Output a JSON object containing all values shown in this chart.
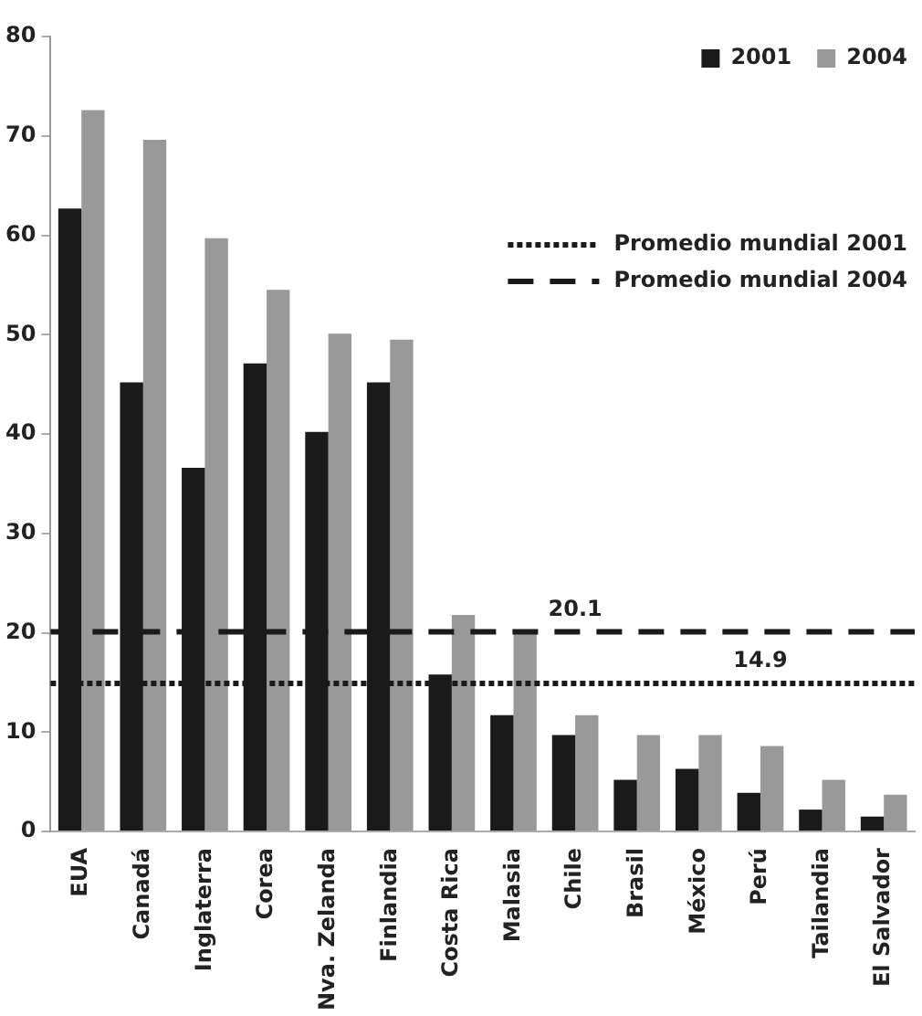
{
  "chart_data": {
    "type": "bar",
    "categories": [
      "EUA",
      "Canadá",
      "Inglaterra",
      "Corea",
      "Nva. Zelanda",
      "Finlandia",
      "Costa Rica",
      "Malasia",
      "Chile",
      "Brasil",
      "México",
      "Perú",
      "Tailandia",
      "El Salvador"
    ],
    "series": [
      {
        "name": "2001",
        "color": "#1a1a1a",
        "values": [
          62.7,
          45.2,
          36.6,
          47.1,
          40.2,
          45.2,
          15.8,
          11.7,
          9.7,
          5.2,
          6.3,
          3.9,
          2.2,
          1.5
        ]
      },
      {
        "name": "2004",
        "color": "#999999",
        "values": [
          72.6,
          69.6,
          59.7,
          54.5,
          50.1,
          49.5,
          21.8,
          20.1,
          11.7,
          9.7,
          9.7,
          8.6,
          5.2,
          3.7
        ]
      }
    ],
    "ylim": [
      0,
      80
    ],
    "yticks": [
      0,
      10,
      20,
      30,
      40,
      50,
      60,
      70,
      80
    ],
    "ref_lines": [
      {
        "axis": "y",
        "value": 14.9,
        "label": "Promedio mundial 2001",
        "color": "#1a1a1a",
        "line_style": "dotted"
      },
      {
        "axis": "y",
        "value": 20.1,
        "label": "Promedio mundial 2004",
        "color": "#1a1a1a",
        "line_style": "dashed"
      }
    ],
    "annotations": [
      {
        "text": "14.9",
        "x": "Perú",
        "y": 14.9
      },
      {
        "text": "20.1",
        "x": "Chile",
        "y": 20.1
      }
    ],
    "grid": false,
    "legend": "top right"
  }
}
